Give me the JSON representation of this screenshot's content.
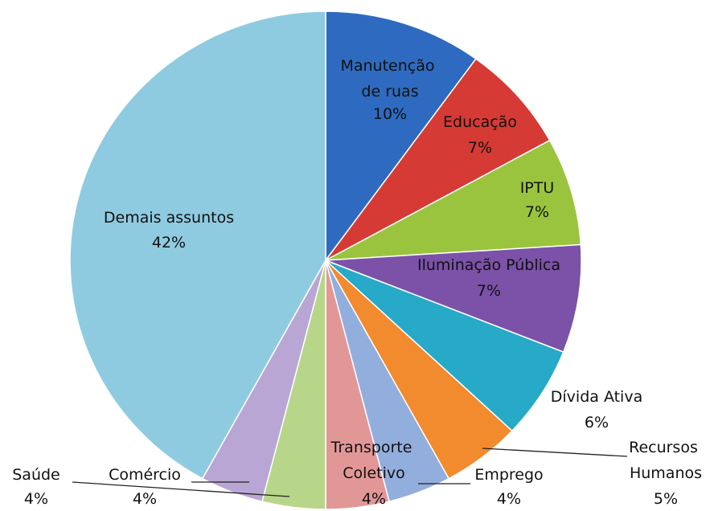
{
  "chart_data": {
    "type": "pie",
    "categories": [
      "Manutenção de ruas",
      "Educação",
      "IPTU",
      "Iluminação Pública",
      "Dívida Ativa",
      "Recursos Humanos",
      "Emprego",
      "Transporte Coletivo",
      "Comércio",
      "Saúde",
      "Demais assuntos"
    ],
    "values": [
      10,
      7,
      7,
      7,
      6,
      5,
      4,
      4,
      4,
      4,
      42
    ],
    "value_labels": [
      "10%",
      "7%",
      "7%",
      "7%",
      "6%",
      "5%",
      "4%",
      "4%",
      "4%",
      "4%",
      "42%"
    ],
    "colors": [
      "#2e6bc0",
      "#d63a35",
      "#9bc43e",
      "#7b52a8",
      "#27a9c8",
      "#f28a2e",
      "#92aedd",
      "#e29797",
      "#b7d68a",
      "#b9a6d4",
      "#8fcbe0"
    ]
  }
}
